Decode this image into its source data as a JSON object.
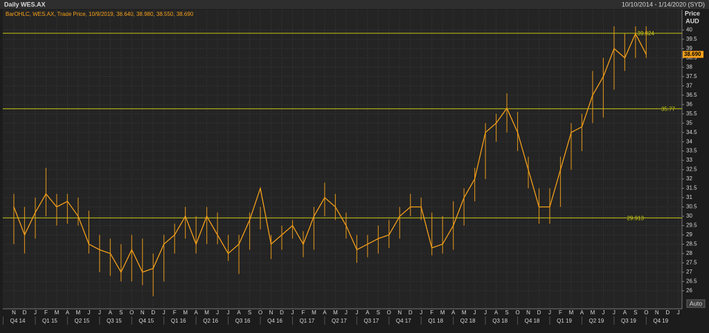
{
  "chart_data": {
    "type": "ohlc-line",
    "title": "Daily WES.AX",
    "date_range": "10/10/2014 - 1/14/2020 (SYD)",
    "legend": "BarOHLC, WES.AX, Trade Price, 10/9/2019, 38.640, 38.980, 38.550, 38.690",
    "y_axis_label": [
      "Price",
      "AUD"
    ],
    "auto_button": "Auto",
    "color": "#f7a11a",
    "line_color": "#c8c814",
    "grid": true,
    "categories": [
      "N",
      "D",
      "J",
      "F",
      "M",
      "A",
      "M",
      "J",
      "J",
      "A",
      "S",
      "O",
      "N",
      "D",
      "J",
      "F",
      "M",
      "A",
      "M",
      "J",
      "J",
      "A",
      "S",
      "O",
      "N",
      "D",
      "J",
      "F",
      "M",
      "A",
      "M",
      "J",
      "J",
      "A",
      "S",
      "O",
      "N",
      "D",
      "J",
      "F",
      "M",
      "A",
      "M",
      "J",
      "J",
      "A",
      "S",
      "O",
      "N",
      "D",
      "J",
      "F",
      "M",
      "A",
      "M",
      "J",
      "J",
      "A",
      "S",
      "O",
      "N",
      "D",
      "J"
    ],
    "quarters": [
      "Q4 14",
      "Q1 15",
      "Q2 15",
      "Q3 15",
      "Q4 15",
      "Q1 16",
      "Q2 16",
      "Q3 16",
      "Q4 16",
      "Q1 17",
      "Q2 17",
      "Q3 17",
      "Q4 17",
      "Q1 18",
      "Q2 18",
      "Q3 18",
      "Q4 18",
      "Q1 19",
      "Q2 19",
      "Q3 19",
      "Q4 19"
    ],
    "high": [
      31.2,
      30.5,
      31,
      32.6,
      31.2,
      31.2,
      31,
      30.3,
      29,
      28.8,
      28.5,
      29,
      28.8,
      28,
      29,
      29.6,
      30.5,
      30,
      30.5,
      30.2,
      29,
      29,
      30.2,
      30.5,
      29,
      29.5,
      29.8,
      29.2,
      30.5,
      31.8,
      31.2,
      30.2,
      29,
      29,
      29.5,
      29.8,
      30.5,
      31.2,
      31,
      30.2,
      30,
      30.8,
      31.5,
      32.6,
      35,
      35.5,
      36.6,
      35.6,
      33.2,
      31.5,
      31.5,
      33.2,
      35,
      35.5,
      37.8,
      38.5,
      40.2,
      39.8,
      40.2,
      40.2,
      null,
      null,
      null
    ],
    "low": [
      28.5,
      28,
      28.8,
      30,
      29.5,
      29.6,
      29.5,
      28,
      27,
      26.8,
      26.5,
      26.5,
      26.3,
      25.7,
      26.5,
      28,
      28.8,
      28,
      28.5,
      28.5,
      27.6,
      26.9,
      28.2,
      29.3,
      27.7,
      28.2,
      28.8,
      27.8,
      28.2,
      30,
      29.8,
      28.8,
      27.5,
      27.8,
      28,
      28.3,
      28.8,
      30,
      29.8,
      27.9,
      28,
      28.2,
      29.5,
      30.8,
      32,
      34,
      34.5,
      33.5,
      31.5,
      29.6,
      29.6,
      30.5,
      32.5,
      33.5,
      35,
      35.3,
      36.8,
      37.8,
      38.5,
      38.5,
      null,
      null,
      null
    ],
    "close": [
      30.5,
      29,
      30.2,
      31.2,
      30.5,
      30.8,
      30,
      28.5,
      28.2,
      28,
      27,
      28.2,
      27,
      27.2,
      28.5,
      29,
      30,
      28.5,
      30,
      29,
      28,
      28.5,
      29.8,
      31.5,
      28.5,
      29,
      29.5,
      28.5,
      30,
      31,
      30.5,
      29.5,
      28.2,
      28.5,
      28.8,
      29,
      30,
      30.5,
      30.5,
      28.3,
      28.5,
      29.5,
      31,
      32,
      34.5,
      35,
      35.8,
      34.5,
      32.5,
      30.5,
      30.5,
      32.5,
      34.5,
      34.8,
      36.5,
      37.5,
      39,
      38.5,
      39.8,
      38.69,
      null,
      null,
      null
    ],
    "ylim": [
      25.03,
      41.09
    ],
    "yticks": [
      26,
      26.5,
      27,
      27.5,
      28,
      28.5,
      29,
      29.5,
      30,
      30.5,
      31,
      31.5,
      32,
      32.5,
      33,
      33.5,
      34,
      34.5,
      35,
      35.5,
      36,
      36.5,
      37,
      37.5,
      38,
      38.5,
      39,
      39.5,
      40
    ],
    "levels": [
      39.824,
      35.77,
      29.913
    ],
    "last_price": {
      "value": 38.69,
      "label": "38.690"
    }
  }
}
